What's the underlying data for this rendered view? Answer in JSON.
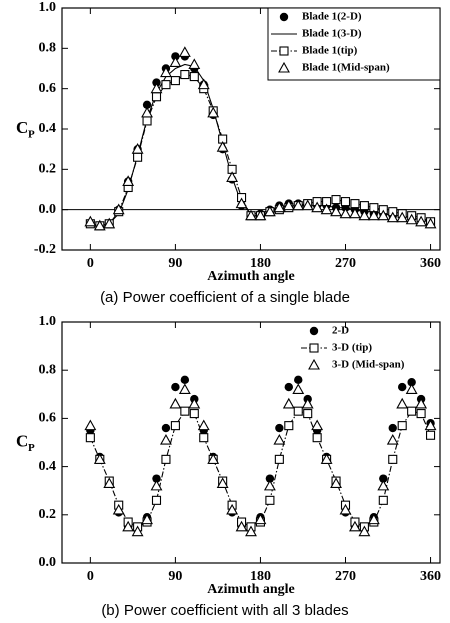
{
  "chart_data": [
    {
      "type": "line",
      "caption": "(a) Power coefficient of a single blade",
      "xlabel": "Azimuth angle",
      "ylabel": "C",
      "ylabel_subscript": "P",
      "x": [
        0,
        10,
        20,
        30,
        40,
        50,
        60,
        70,
        80,
        90,
        100,
        110,
        120,
        130,
        140,
        150,
        160,
        170,
        180,
        190,
        200,
        210,
        220,
        230,
        240,
        250,
        260,
        270,
        280,
        290,
        300,
        310,
        320,
        330,
        340,
        350,
        360
      ],
      "xlim": [
        -30,
        370
      ],
      "xticks": [
        0,
        90,
        180,
        270,
        360
      ],
      "ylim": [
        -0.2,
        1.0
      ],
      "yticks": [
        -0.2,
        {
          "value": 0,
          "label": "0.0"
        },
        0.2,
        0.4,
        0.6,
        0.8,
        {
          "value": 1,
          "label": "1.0"
        }
      ],
      "zero_line": true,
      "legend": "upper right",
      "legend_box": true,
      "series": [
        {
          "name": "Blade 1(2-D)",
          "color": "#000000",
          "marker": "circle",
          "line": null,
          "values": [
            -0.07,
            -0.08,
            -0.07,
            0.0,
            0.14,
            0.3,
            0.52,
            0.63,
            0.7,
            0.76,
            0.76,
            0.7,
            0.62,
            0.47,
            0.3,
            0.15,
            0.02,
            -0.03,
            -0.02,
            0.0,
            0.02,
            0.03,
            0.03,
            0.03,
            0.02,
            0.02,
            0.01,
            0.01,
            0.0,
            -0.01,
            -0.02,
            -0.02,
            -0.03,
            -0.03,
            -0.04,
            -0.05,
            -0.06
          ]
        },
        {
          "name": "Blade 1(3-D)",
          "color": "#000000",
          "marker": null,
          "line": "solid",
          "values": [
            -0.07,
            -0.08,
            -0.07,
            -0.02,
            0.1,
            0.27,
            0.45,
            0.58,
            0.66,
            0.7,
            0.72,
            0.71,
            0.64,
            0.5,
            0.33,
            0.16,
            0.03,
            -0.02,
            -0.02,
            0.0,
            0.01,
            0.02,
            0.02,
            0.02,
            0.02,
            0.02,
            0.01,
            0.01,
            0.0,
            -0.01,
            -0.01,
            -0.02,
            -0.03,
            -0.03,
            -0.04,
            -0.05,
            -0.06
          ]
        },
        {
          "name": "Blade 1(tip)",
          "color": "#000000",
          "marker": "square",
          "line": "dashdot",
          "values": [
            -0.07,
            -0.08,
            -0.07,
            -0.01,
            0.11,
            0.26,
            0.44,
            0.56,
            0.62,
            0.64,
            0.67,
            0.66,
            0.6,
            0.49,
            0.35,
            0.2,
            0.06,
            -0.03,
            -0.03,
            -0.01,
            0.0,
            0.01,
            0.02,
            0.03,
            0.04,
            0.04,
            0.05,
            0.04,
            0.03,
            0.02,
            0.01,
            0.0,
            -0.01,
            -0.02,
            -0.03,
            -0.04,
            -0.06
          ]
        },
        {
          "name": "Blade 1(Mid-span)",
          "color": "#000000",
          "marker": "triangle",
          "line": null,
          "values": [
            -0.06,
            -0.08,
            -0.07,
            0.0,
            0.14,
            0.3,
            0.48,
            0.6,
            0.68,
            0.73,
            0.78,
            0.72,
            0.62,
            0.48,
            0.31,
            0.16,
            0.03,
            -0.03,
            -0.03,
            -0.01,
            0.01,
            0.02,
            0.02,
            0.02,
            0.01,
            0.0,
            -0.01,
            -0.02,
            -0.02,
            -0.03,
            -0.03,
            -0.03,
            -0.04,
            -0.04,
            -0.05,
            -0.06,
            -0.07
          ]
        }
      ]
    },
    {
      "type": "line",
      "caption": "(b) Power coefficient with all 3 blades",
      "xlabel": "Azimuth angle",
      "ylabel": "C",
      "ylabel_subscript": "P",
      "x": [
        0,
        10,
        20,
        30,
        40,
        50,
        60,
        70,
        80,
        90,
        100,
        110,
        120,
        130,
        140,
        150,
        160,
        170,
        180,
        190,
        200,
        210,
        220,
        230,
        240,
        250,
        260,
        270,
        280,
        290,
        300,
        310,
        320,
        330,
        340,
        350,
        360
      ],
      "xlim": [
        -30,
        370
      ],
      "xticks": [
        0,
        90,
        180,
        270,
        360
      ],
      "ylim": [
        0,
        1.0
      ],
      "yticks": [
        {
          "value": 0,
          "label": "0.0"
        },
        0.2,
        0.4,
        0.6,
        0.8,
        {
          "value": 1,
          "label": "1.0"
        }
      ],
      "zero_line": false,
      "legend": "upper right",
      "legend_box": false,
      "series": [
        {
          "name": "2-D",
          "color": "#000000",
          "marker": "circle",
          "line": null,
          "values": [
            0.55,
            0.44,
            0.33,
            0.21,
            0.15,
            0.14,
            0.19,
            0.35,
            0.56,
            0.73,
            0.76,
            0.68,
            0.55,
            0.44,
            0.33,
            0.21,
            0.15,
            0.14,
            0.19,
            0.35,
            0.56,
            0.73,
            0.76,
            0.68,
            0.55,
            0.44,
            0.33,
            0.21,
            0.15,
            0.14,
            0.19,
            0.35,
            0.56,
            0.73,
            0.75,
            0.68,
            0.58
          ]
        },
        {
          "name": "3-D (tip)",
          "color": "#000000",
          "marker": "square",
          "line": "dashdot",
          "values": [
            0.52,
            0.43,
            0.34,
            0.24,
            0.17,
            0.15,
            0.17,
            0.26,
            0.43,
            0.57,
            0.63,
            0.62,
            0.52,
            0.43,
            0.34,
            0.24,
            0.17,
            0.15,
            0.17,
            0.26,
            0.43,
            0.57,
            0.63,
            0.62,
            0.52,
            0.43,
            0.34,
            0.24,
            0.17,
            0.15,
            0.17,
            0.26,
            0.43,
            0.57,
            0.63,
            0.62,
            0.53
          ]
        },
        {
          "name": "3-D (Mid-span)",
          "color": "#000000",
          "marker": "triangle",
          "line": null,
          "values": [
            0.57,
            0.43,
            0.33,
            0.22,
            0.15,
            0.13,
            0.18,
            0.32,
            0.51,
            0.66,
            0.72,
            0.66,
            0.57,
            0.43,
            0.33,
            0.22,
            0.15,
            0.13,
            0.18,
            0.32,
            0.51,
            0.66,
            0.72,
            0.66,
            0.57,
            0.43,
            0.33,
            0.22,
            0.15,
            0.13,
            0.18,
            0.32,
            0.51,
            0.66,
            0.72,
            0.66,
            0.57
          ]
        }
      ]
    }
  ]
}
